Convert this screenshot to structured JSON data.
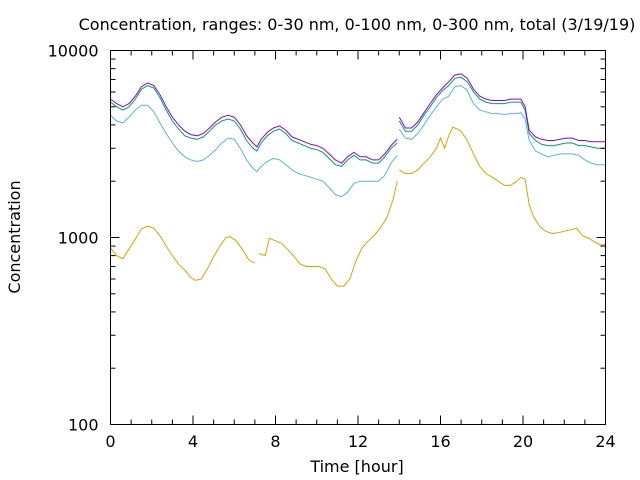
{
  "chart_data": {
    "type": "line",
    "title": "Concentration, ranges: 0-30 nm, 0-100 nm, 0-300 nm, total (3/19/19)",
    "xlabel": "Time [hour]",
    "ylabel": "Concentration",
    "xlim": [
      0,
      24
    ],
    "ylim": [
      100,
      10000
    ],
    "yscale": "log",
    "x_ticks": [
      0,
      4,
      8,
      12,
      16,
      20,
      24
    ],
    "x_tick_labels": [
      "0",
      "4",
      "8",
      "12",
      "16",
      "20",
      "24"
    ],
    "y_ticks": [
      100,
      1000,
      10000
    ],
    "y_tick_labels": [
      "100",
      "1000",
      "10000"
    ],
    "grid": false,
    "legend": "none",
    "series": [
      {
        "color": "#e69f00",
        "segments": [
          {
            "x": [
              0,
              0.3,
              0.6,
              0.9,
              1.2,
              1.5,
              1.8,
              2.1,
              2.4,
              2.7,
              3.0,
              3.3,
              3.6,
              3.9,
              4.1,
              4.4,
              4.7,
              5.0,
              5.3,
              5.6,
              5.8,
              6.1,
              6.4,
              6.7,
              7.0
            ],
            "y": [
              880,
              800,
              770,
              870,
              980,
              1110,
              1150,
              1120,
              1020,
              900,
              800,
              720,
              670,
              610,
              590,
              600,
              680,
              790,
              900,
              1000,
              1010,
              960,
              860,
              760,
              730
            ]
          },
          {
            "x": [
              7.2,
              7.5,
              7.7,
              8.0,
              8.3,
              8.6,
              8.9,
              9.2,
              9.5,
              9.8,
              10.1,
              10.4,
              10.7,
              11.0,
              11.3,
              11.6,
              11.9,
              12.2,
              12.5,
              12.8,
              13.1,
              13.4,
              13.7,
              13.9
            ],
            "y": [
              820,
              800,
              990,
              960,
              930,
              860,
              790,
              720,
              700,
              700,
              700,
              680,
              600,
              550,
              550,
              600,
              750,
              880,
              960,
              1030,
              1130,
              1280,
              1600,
              2000
            ]
          },
          {
            "x": [
              14.0,
              14.3,
              14.6,
              14.9,
              15.2,
              15.5,
              15.8,
              16.0,
              16.2,
              16.4,
              16.6,
              16.8,
              17.0,
              17.3,
              17.6,
              17.9,
              18.2,
              18.5,
              18.8,
              19.1,
              19.4,
              19.7,
              19.9,
              20.1,
              20.3,
              20.5,
              20.8,
              21.1,
              21.4,
              21.7,
              22.0,
              22.3,
              22.6,
              22.9,
              23.2,
              23.5,
              23.8,
              24.0
            ],
            "y": [
              2300,
              2200,
              2200,
              2300,
              2500,
              2700,
              3000,
              3400,
              3000,
              3500,
              3900,
              3800,
              3700,
              3300,
              2800,
              2400,
              2200,
              2100,
              2000,
              1900,
              1900,
              2000,
              2100,
              2050,
              1500,
              1300,
              1150,
              1080,
              1050,
              1060,
              1080,
              1100,
              1120,
              1020,
              990,
              940,
              910,
              920
            ]
          }
        ]
      },
      {
        "color": "#56b4e9",
        "segments": [
          {
            "x": [
              0,
              0.3,
              0.6,
              0.9,
              1.2,
              1.5,
              1.8,
              2.1,
              2.4,
              2.7,
              3.0,
              3.3,
              3.6,
              3.9,
              4.2,
              4.5,
              4.8,
              5.1,
              5.4,
              5.7,
              6.0,
              6.3,
              6.6,
              6.9,
              7.1,
              7.3,
              7.6,
              7.9,
              8.2,
              8.5,
              8.8,
              9.1,
              9.4,
              9.7,
              10.0,
              10.3,
              10.6,
              10.9,
              11.2,
              11.5,
              11.8,
              12.1,
              12.4,
              12.7,
              13.0,
              13.3,
              13.6,
              13.9
            ],
            "y": [
              4500,
              4200,
              4100,
              4400,
              4800,
              5100,
              5100,
              4700,
              4100,
              3600,
              3200,
              2900,
              2700,
              2600,
              2550,
              2600,
              2750,
              2950,
              3200,
              3400,
              3350,
              3000,
              2600,
              2350,
              2250,
              2400,
              2550,
              2650,
              2600,
              2450,
              2300,
              2200,
              2150,
              2100,
              2050,
              2000,
              1850,
              1700,
              1650,
              1750,
              1950,
              2000,
              2000,
              2000,
              2000,
              2150,
              2500,
              2750
            ]
          },
          {
            "x": [
              14.0,
              14.3,
              14.6,
              14.9,
              15.2,
              15.5,
              15.8,
              16.1,
              16.4,
              16.7,
              17.0,
              17.3,
              17.6,
              17.9,
              18.2,
              18.5,
              18.8,
              19.1,
              19.4,
              19.7,
              19.9,
              20.1,
              20.3,
              20.6,
              20.9,
              21.2,
              21.5,
              21.8,
              22.1,
              22.4,
              22.7,
              23.0,
              23.3,
              23.6,
              24.0
            ],
            "y": [
              3800,
              3400,
              3350,
              3600,
              4000,
              4500,
              5000,
              5500,
              5700,
              6400,
              6500,
              6100,
              5200,
              4800,
              4700,
              4600,
              4600,
              4550,
              4600,
              4600,
              4650,
              4300,
              3300,
              2900,
              2800,
              2700,
              2750,
              2800,
              2800,
              2800,
              2750,
              2600,
              2500,
              2450,
              2450
            ]
          }
        ]
      },
      {
        "color": "#009e73",
        "segments": [
          {
            "x": [
              0,
              0.3,
              0.6,
              0.9,
              1.2,
              1.5,
              1.8,
              2.1,
              2.4,
              2.7,
              3.0,
              3.3,
              3.6,
              3.9,
              4.2,
              4.5,
              4.8,
              5.1,
              5.4,
              5.7,
              6.0,
              6.3,
              6.6,
              6.9,
              7.1,
              7.3,
              7.6,
              7.9,
              8.2,
              8.5,
              8.8,
              9.1,
              9.4,
              9.7,
              10.0,
              10.3,
              10.6,
              10.9,
              11.2,
              11.5,
              11.8,
              12.1,
              12.4,
              12.7,
              13.0,
              13.3,
              13.6,
              13.9
            ],
            "y": [
              5300,
              5000,
              4800,
              5000,
              5500,
              6200,
              6500,
              6300,
              5600,
              4800,
              4200,
              3800,
              3500,
              3400,
              3350,
              3450,
              3700,
              4000,
              4200,
              4300,
              4200,
              3800,
              3300,
              3000,
              2900,
              3200,
              3500,
              3700,
              3800,
              3600,
              3300,
              3200,
              3100,
              3000,
              2950,
              2850,
              2650,
              2450,
              2400,
              2600,
              2750,
              2600,
              2600,
              2500,
              2500,
              2700,
              3000,
              3200
            ]
          },
          {
            "x": [
              14.0,
              14.3,
              14.6,
              14.9,
              15.2,
              15.5,
              15.8,
              16.1,
              16.4,
              16.7,
              17.0,
              17.3,
              17.6,
              17.9,
              18.2,
              18.5,
              18.8,
              19.1,
              19.4,
              19.7,
              19.9,
              20.1,
              20.3,
              20.6,
              20.9,
              21.2,
              21.5,
              21.8,
              22.1,
              22.4,
              22.7,
              23.0,
              23.3,
              23.6,
              24.0
            ],
            "y": [
              4200,
              3700,
              3700,
              4000,
              4500,
              5000,
              5600,
              6100,
              6500,
              7100,
              7200,
              6800,
              6000,
              5500,
              5300,
              5200,
              5200,
              5200,
              5300,
              5300,
              5300,
              4800,
              3600,
              3300,
              3150,
              3100,
              3100,
              3150,
              3200,
              3200,
              3100,
              3100,
              3050,
              3000,
              3000
            ]
          }
        ]
      },
      {
        "color": "#9400d3",
        "segments": [
          {
            "x": [
              0,
              0.3,
              0.6,
              0.9,
              1.2,
              1.5,
              1.8,
              2.1,
              2.4,
              2.7,
              3.0,
              3.3,
              3.6,
              3.9,
              4.2,
              4.5,
              4.8,
              5.1,
              5.4,
              5.7,
              6.0,
              6.3,
              6.6,
              6.9,
              7.1,
              7.3,
              7.6,
              7.9,
              8.2,
              8.5,
              8.8,
              9.1,
              9.4,
              9.7,
              10.0,
              10.3,
              10.6,
              10.9,
              11.2,
              11.5,
              11.8,
              12.1,
              12.4,
              12.7,
              13.0,
              13.3,
              13.6,
              13.9
            ],
            "y": [
              5500,
              5200,
              5000,
              5200,
              5700,
              6400,
              6700,
              6500,
              5800,
              5000,
              4400,
              4000,
              3700,
              3550,
              3500,
              3600,
              3850,
              4150,
              4400,
              4500,
              4400,
              4000,
              3500,
              3200,
              3050,
              3350,
              3650,
              3850,
              3950,
              3750,
              3450,
              3350,
              3250,
              3150,
              3100,
              3000,
              2800,
              2600,
              2500,
              2700,
              2850,
              2700,
              2700,
              2600,
              2600,
              2800,
              3100,
              3350
            ]
          },
          {
            "x": [
              14.0,
              14.3,
              14.6,
              14.9,
              15.2,
              15.5,
              15.8,
              16.1,
              16.4,
              16.7,
              17.0,
              17.3,
              17.6,
              17.9,
              18.2,
              18.5,
              18.8,
              19.1,
              19.4,
              19.7,
              19.9,
              20.1,
              20.3,
              20.6,
              20.9,
              21.2,
              21.5,
              21.8,
              22.1,
              22.4,
              22.7,
              23.0,
              23.3,
              23.6,
              24.0
            ],
            "y": [
              4400,
              3850,
              3850,
              4150,
              4650,
              5200,
              5800,
              6300,
              6800,
              7400,
              7500,
              7100,
              6200,
              5700,
              5500,
              5400,
              5400,
              5400,
              5500,
              5500,
              5500,
              5000,
              3750,
              3450,
              3350,
              3300,
              3300,
              3350,
              3400,
              3400,
              3300,
              3300,
              3250,
              3250,
              3250
            ]
          }
        ]
      }
    ]
  }
}
